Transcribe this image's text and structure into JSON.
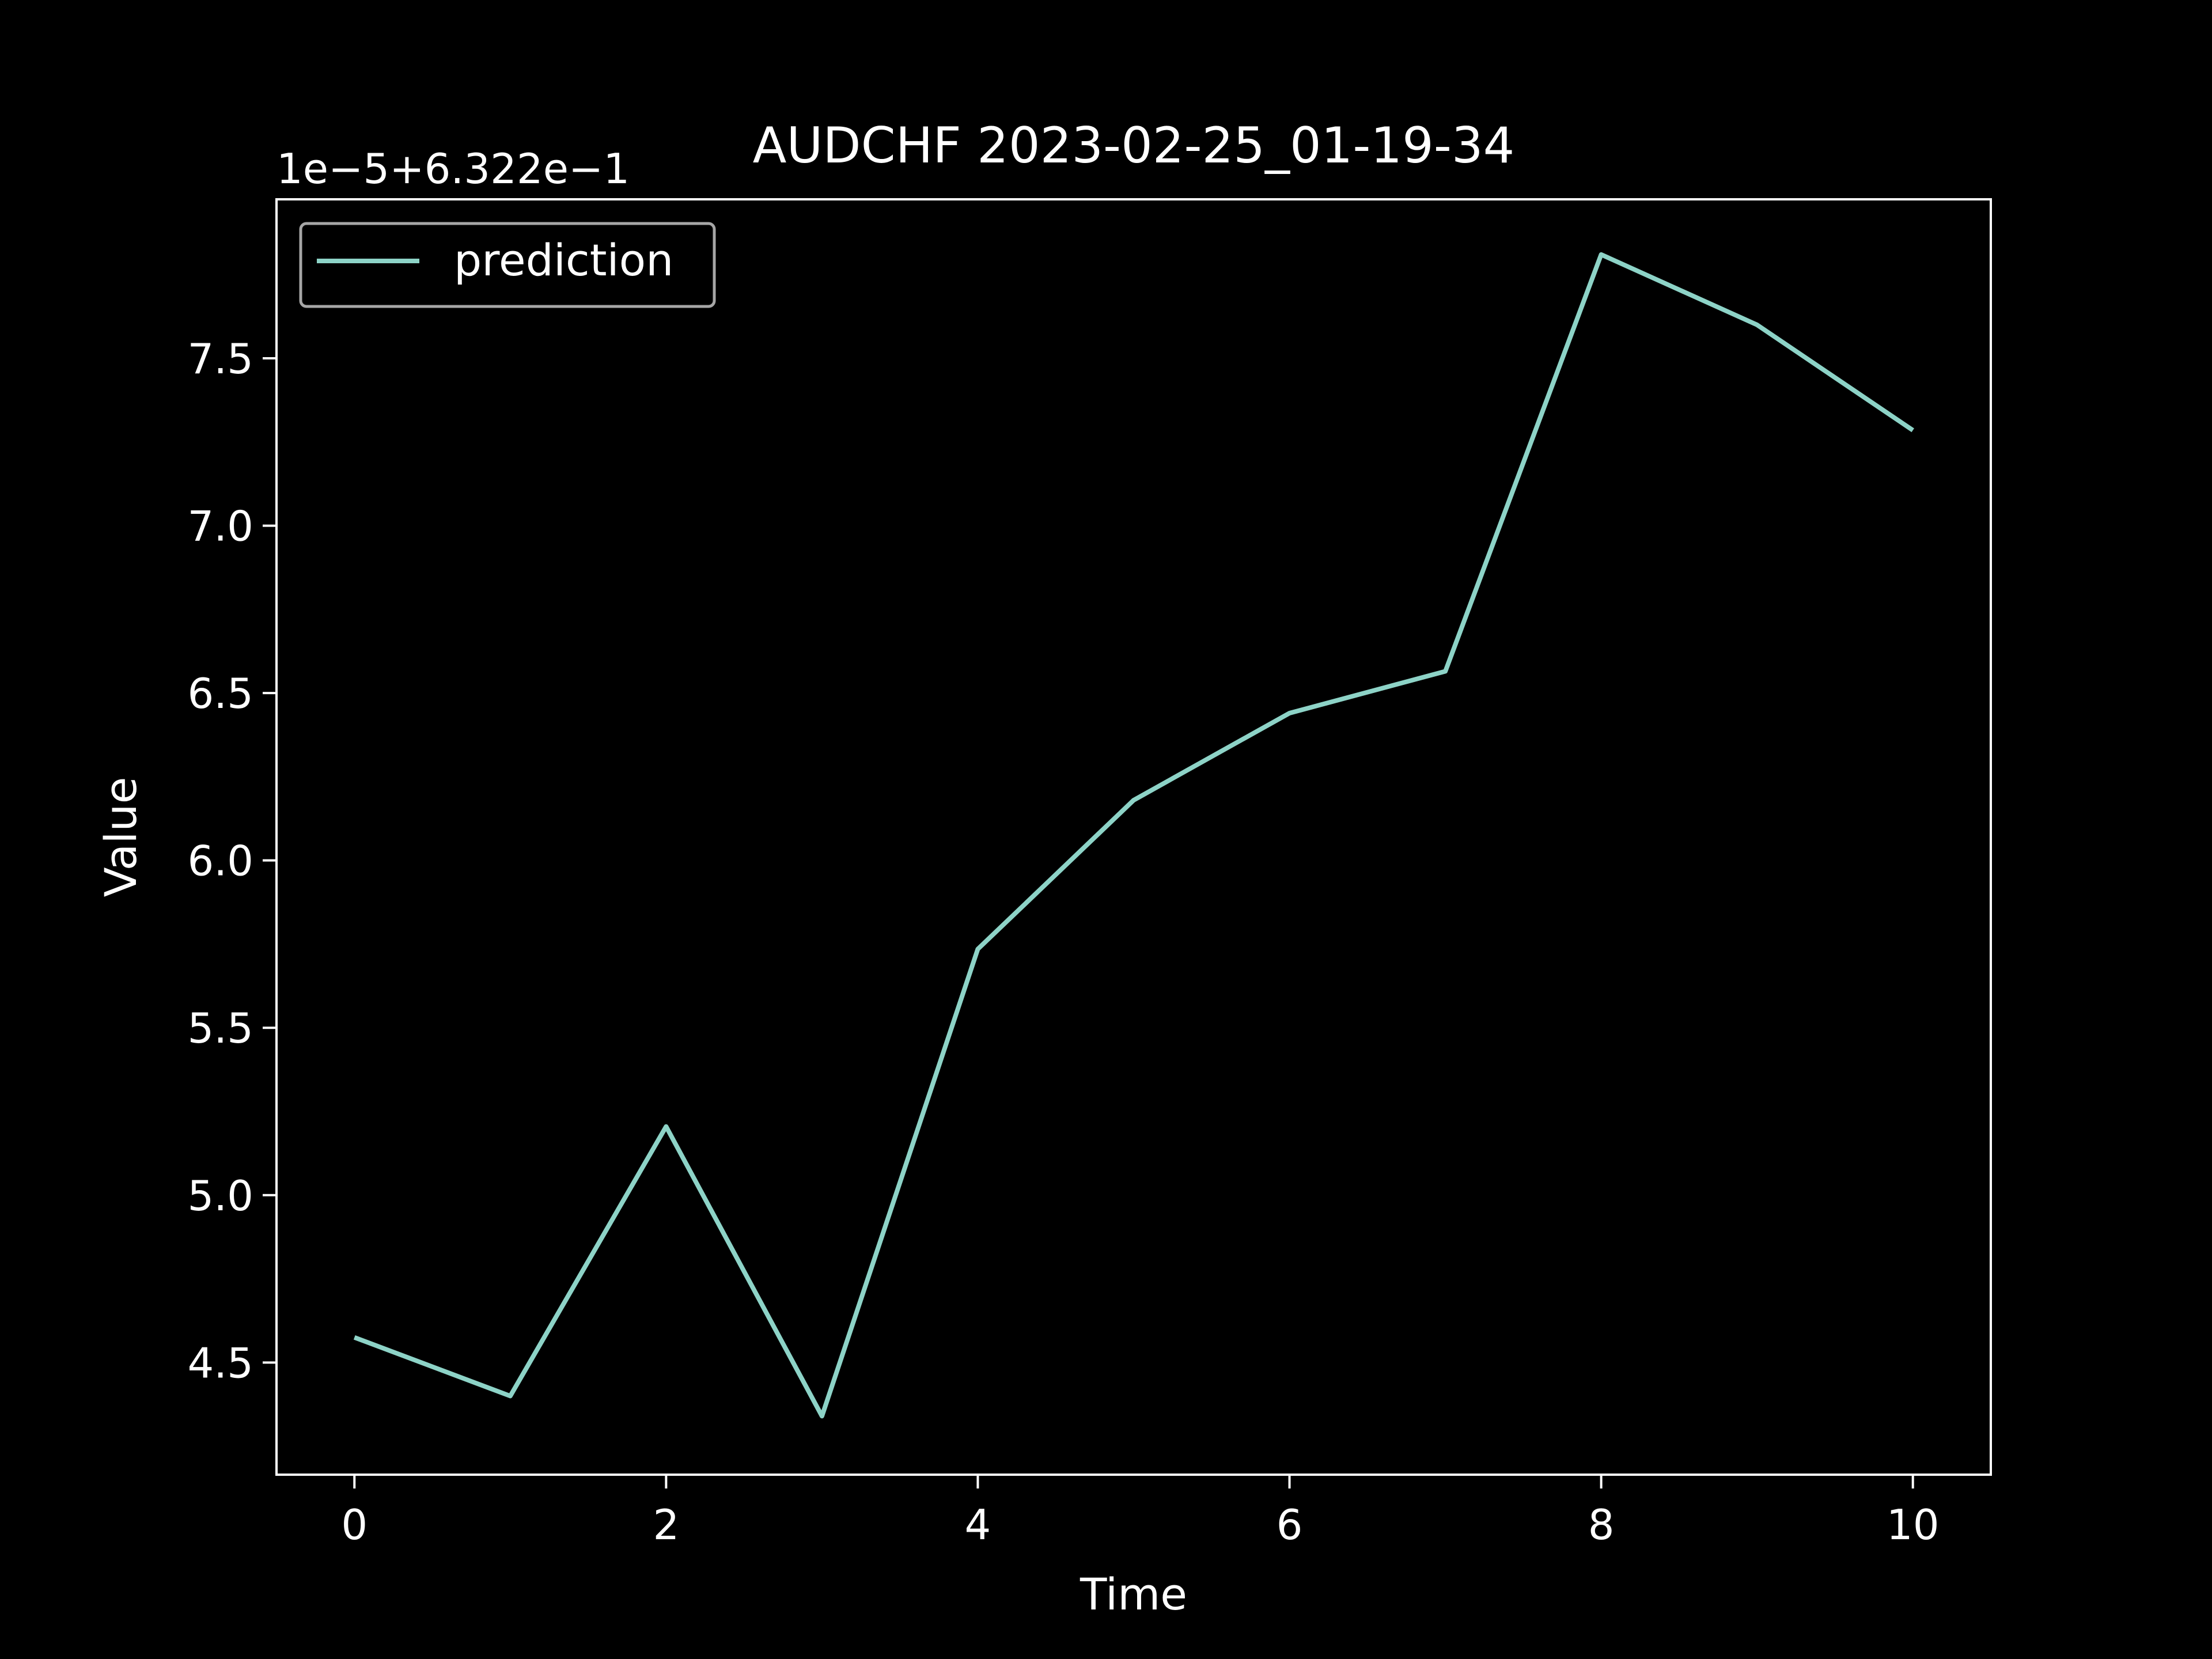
{
  "chart_data": {
    "type": "line",
    "title": "AUDCHF 2023-02-25_01-19-34",
    "xlabel": "Time",
    "ylabel": "Value",
    "offset_label": "1e−5+6.322e−1",
    "x": [
      0,
      1,
      2,
      3,
      4,
      5,
      6,
      7,
      8,
      9,
      10
    ],
    "series": [
      {
        "name": "prediction",
        "color": "#8dd3c7",
        "values": [
          4.575,
          4.4,
          5.205,
          4.34,
          5.735,
          6.18,
          6.44,
          6.565,
          7.81,
          7.6,
          7.285
        ]
      }
    ],
    "xlim": [
      -0.5,
      10.5
    ],
    "ylim": [
      4.165,
      7.975
    ],
    "xticks": [
      0,
      2,
      4,
      6,
      8,
      10
    ],
    "xtick_labels": [
      "0",
      "2",
      "4",
      "6",
      "8",
      "10"
    ],
    "yticks": [
      4.5,
      5.0,
      5.5,
      6.0,
      6.5,
      7.0,
      7.5
    ],
    "ytick_labels": [
      "4.5",
      "5.0",
      "5.5",
      "6.0",
      "6.5",
      "7.0",
      "7.5"
    ],
    "grid": false,
    "legend": "top-left",
    "background": "#000000",
    "axes_color": "#ffffff"
  }
}
